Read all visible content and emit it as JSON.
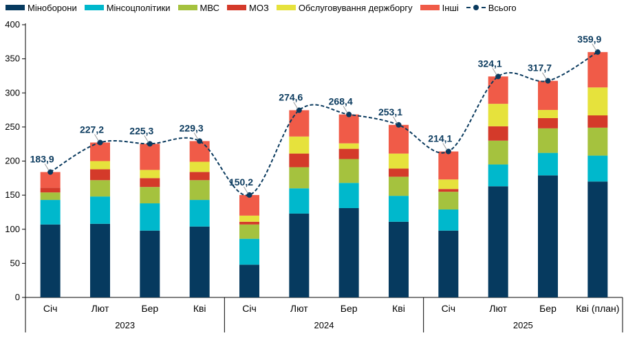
{
  "chart_data": {
    "type": "bar",
    "stacked": true,
    "categories": [
      "Січ",
      "Лют",
      "Бер",
      "Кві",
      "Січ",
      "Лют",
      "Бер",
      "Кві",
      "Січ",
      "Лют",
      "Бер",
      "Кві (план)"
    ],
    "groups": [
      {
        "label": "2023",
        "count": 4
      },
      {
        "label": "2024",
        "count": 4
      },
      {
        "label": "2025",
        "count": 4
      }
    ],
    "series": [
      {
        "name": "Міноборони",
        "color": "#063a5f",
        "values": [
          107,
          108,
          98,
          104,
          48,
          123,
          131,
          111,
          98,
          163,
          179,
          170
        ]
      },
      {
        "name": "Мінсоцполітики",
        "color": "#00b8cc",
        "values": [
          36,
          40,
          40,
          39,
          38,
          37,
          37,
          38,
          31,
          32,
          33,
          38
        ]
      },
      {
        "name": "МВС",
        "color": "#a5c23e",
        "values": [
          11,
          24,
          24,
          29,
          21,
          31,
          35,
          28,
          26,
          35,
          36,
          41
        ]
      },
      {
        "name": "МОЗ",
        "color": "#d43a2a",
        "values": [
          7,
          16,
          13,
          12,
          4,
          20,
          15,
          12,
          4,
          21,
          15,
          18
        ]
      },
      {
        "name": "Обслуговування держборгу",
        "color": "#e6e23c",
        "values": [
          0,
          12,
          12,
          15,
          9,
          25,
          8,
          22,
          14,
          33,
          12,
          41
        ]
      },
      {
        "name": "Інші",
        "color": "#f05b48",
        "values": [
          22.9,
          27.2,
          38.3,
          30.3,
          30.2,
          38.6,
          42.4,
          42.1,
          41.1,
          40.1,
          42.7,
          51.9
        ]
      }
    ],
    "total": {
      "name": "Всього",
      "color": "#0a3a5e",
      "values": [
        183.9,
        227.2,
        225.3,
        229.3,
        150.2,
        274.6,
        268.4,
        253.1,
        214.1,
        324.1,
        317.7,
        359.9
      ],
      "labels": [
        "183,9",
        "227,2",
        "225,3",
        "229,3",
        "150,2",
        "274,6",
        "268,4",
        "253,1",
        "214,1",
        "324,1",
        "317,7",
        "359,9"
      ]
    },
    "yticks": [
      0,
      50,
      100,
      150,
      200,
      250,
      300,
      350,
      400
    ],
    "ylim": [
      0,
      400
    ],
    "legend_position": "top",
    "grid": false,
    "title": "",
    "xlabel": "",
    "ylabel": ""
  }
}
